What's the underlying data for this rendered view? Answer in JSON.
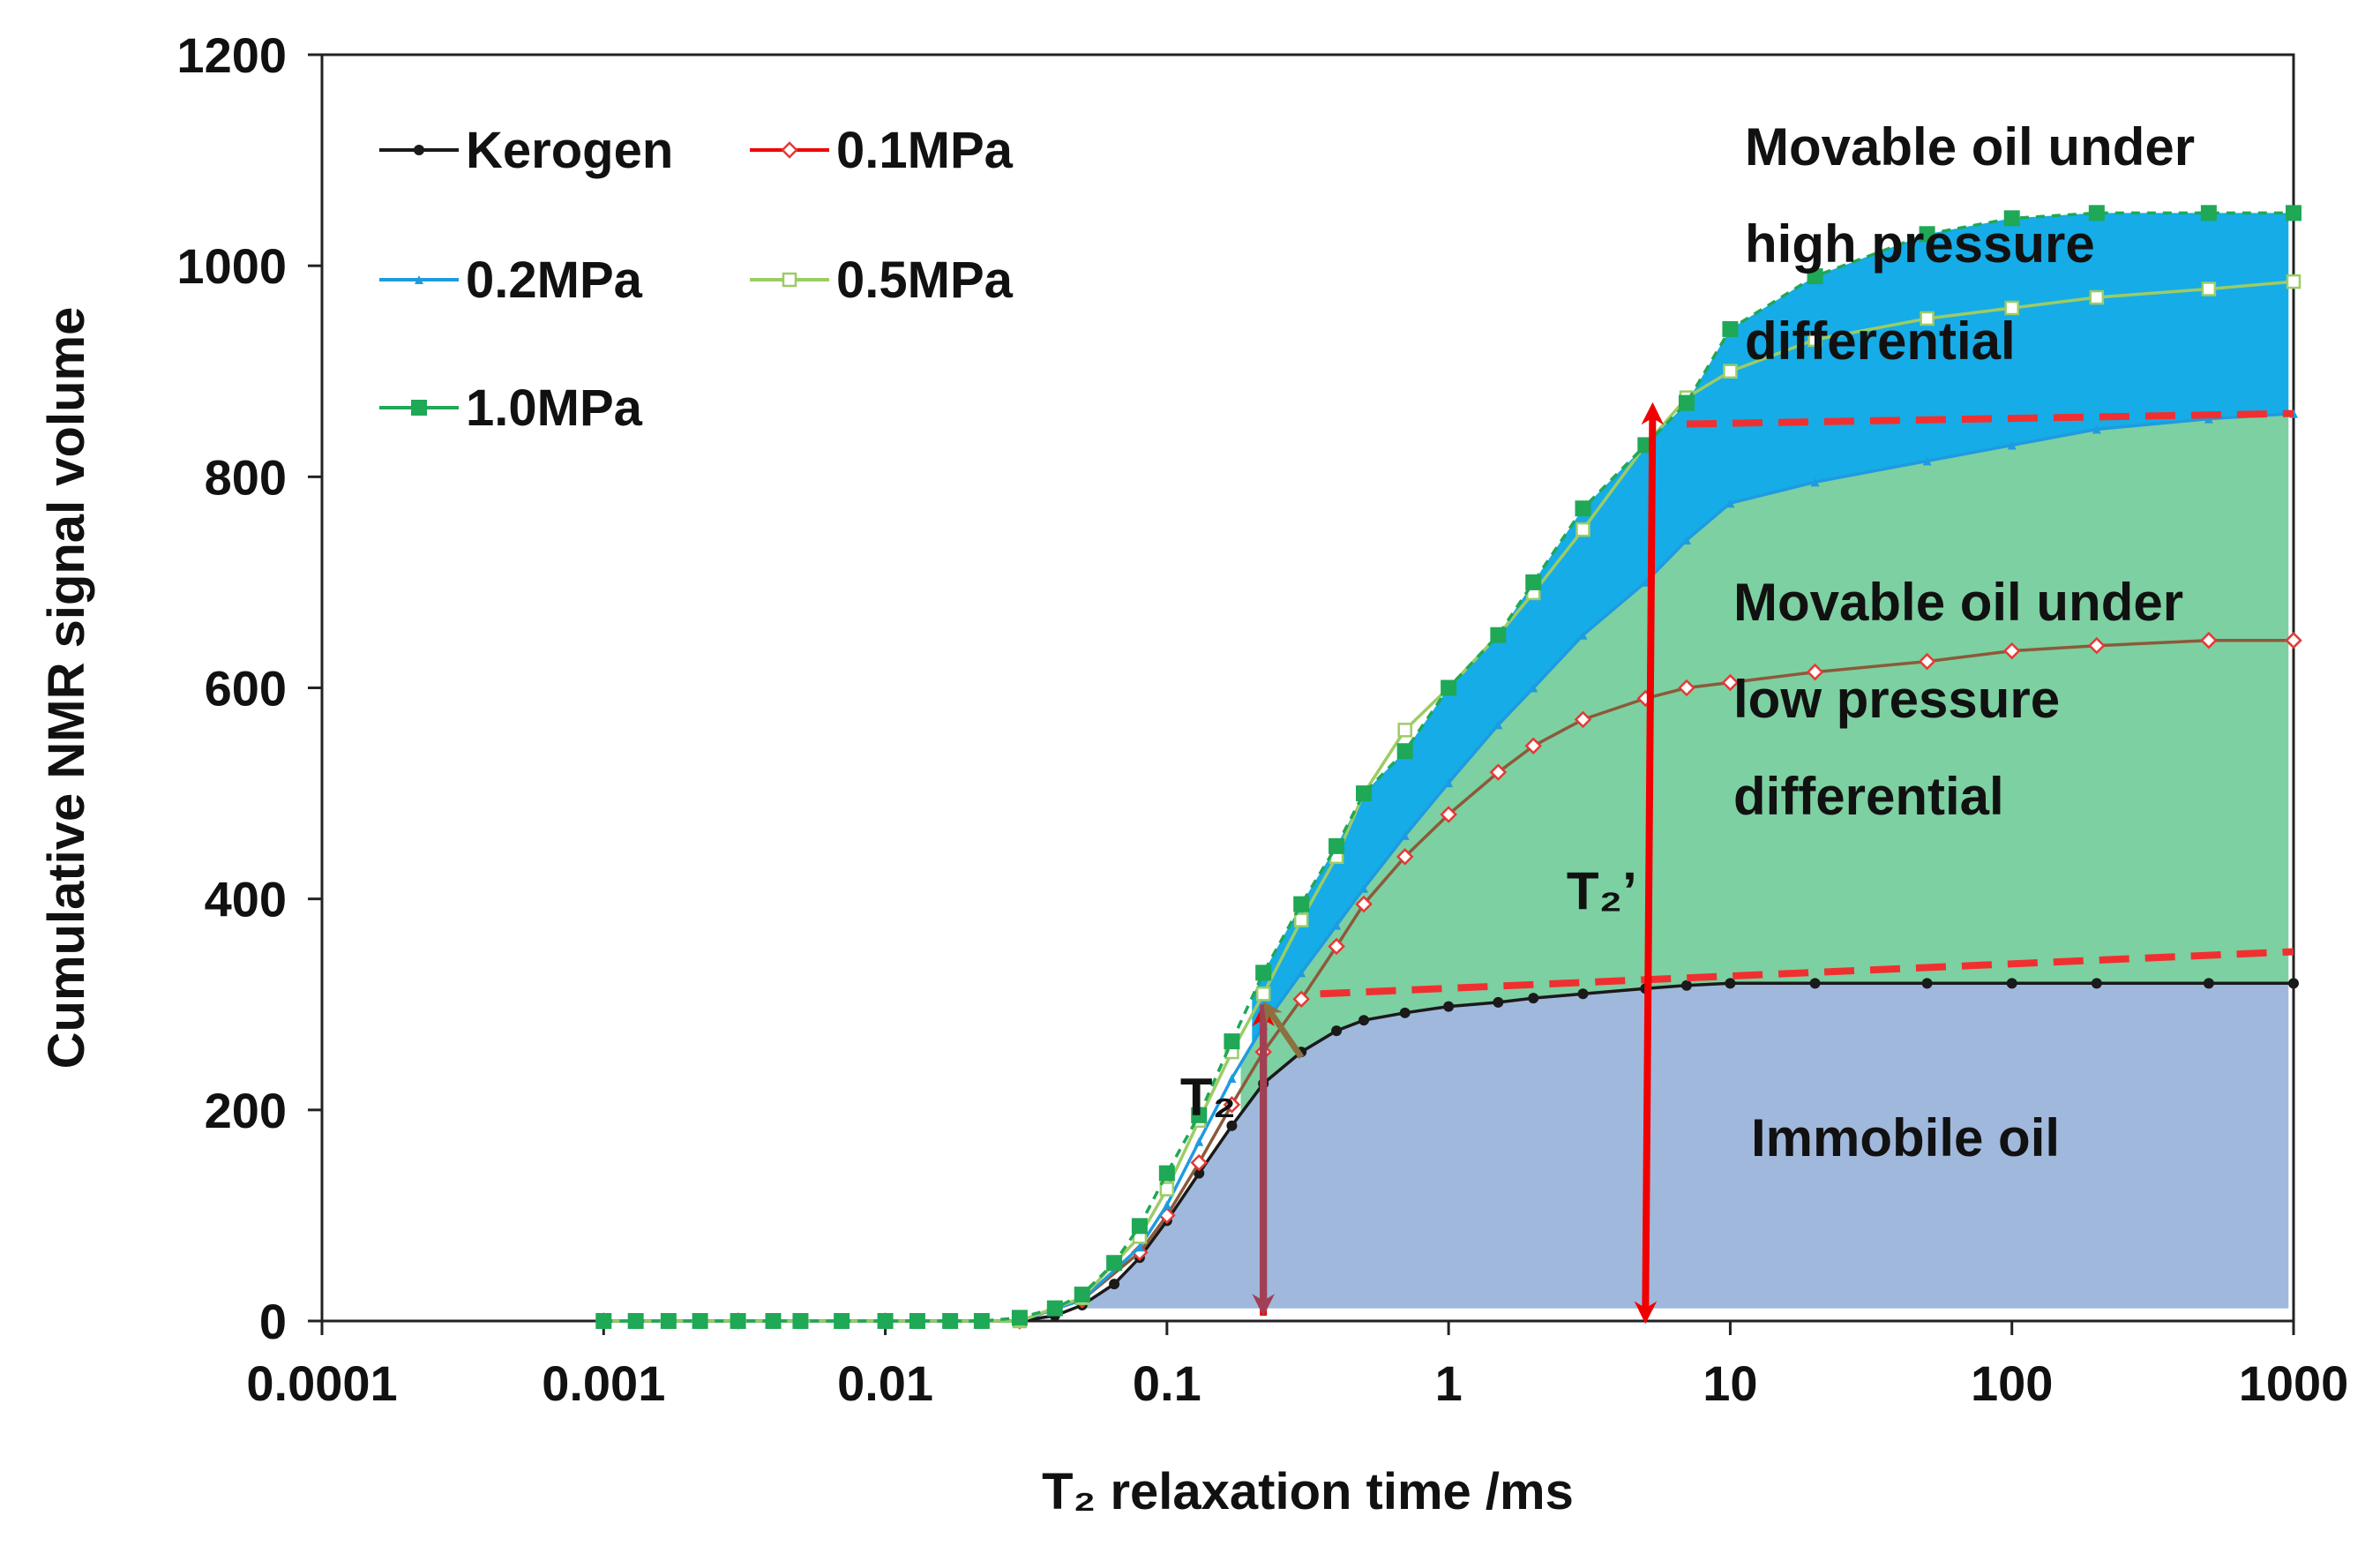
{
  "chart_data": {
    "type": "line",
    "title": "",
    "xlabel": "T₂ relaxation time /ms",
    "ylabel": "Cumulative NMR signal volume",
    "x_scale": "log",
    "xlim": [
      0.0001,
      1000
    ],
    "ylim": [
      0,
      1200
    ],
    "x_ticks": [
      "0.0001",
      "0.001",
      "0.01",
      "0.1",
      "1",
      "10",
      "100",
      "1000"
    ],
    "y_ticks": [
      "0",
      "200",
      "400",
      "600",
      "800",
      "1000",
      "1200"
    ],
    "grid": false,
    "legend": {
      "placement": "top-left"
    },
    "series": [
      {
        "name": "Kerogen",
        "color": "#1a1a1a",
        "marker": "circle",
        "x": [
          0.001,
          0.0013,
          0.0017,
          0.0022,
          0.003,
          0.004,
          0.005,
          0.007,
          0.01,
          0.013,
          0.017,
          0.022,
          0.03,
          0.04,
          0.05,
          0.065,
          0.08,
          0.1,
          0.13,
          0.17,
          0.22,
          0.3,
          0.4,
          0.5,
          0.7,
          1,
          1.5,
          2,
          3,
          5,
          7,
          10,
          20,
          50,
          100,
          200,
          500,
          1000
        ],
        "y": [
          0,
          0,
          0,
          0,
          0,
          0,
          0,
          0,
          0,
          0,
          0,
          0,
          0,
          5,
          15,
          35,
          60,
          95,
          140,
          185,
          225,
          255,
          275,
          285,
          292,
          298,
          302,
          306,
          310,
          315,
          318,
          320,
          320,
          320,
          320,
          320,
          320,
          320
        ]
      },
      {
        "name": "0.1MPa",
        "color": "#e53935",
        "marker": "diamond-open",
        "x": [
          0.001,
          0.003,
          0.01,
          0.03,
          0.05,
          0.08,
          0.1,
          0.13,
          0.17,
          0.22,
          0.3,
          0.4,
          0.5,
          0.7,
          1,
          1.5,
          2,
          3,
          5,
          7,
          10,
          20,
          50,
          100,
          200,
          500,
          1000
        ],
        "y": [
          0,
          0,
          0,
          0,
          20,
          65,
          100,
          150,
          205,
          255,
          305,
          355,
          395,
          440,
          480,
          520,
          545,
          570,
          590,
          600,
          605,
          615,
          625,
          635,
          640,
          645,
          645
        ]
      },
      {
        "name": "0.2MPa",
        "color": "#1e9be0",
        "marker": "triangle",
        "x": [
          0.001,
          0.003,
          0.01,
          0.03,
          0.05,
          0.08,
          0.1,
          0.13,
          0.17,
          0.22,
          0.3,
          0.4,
          0.5,
          0.7,
          1,
          1.5,
          2,
          3,
          5,
          7,
          10,
          20,
          50,
          100,
          200,
          500,
          1000
        ],
        "y": [
          0,
          0,
          0,
          0,
          20,
          70,
          110,
          170,
          230,
          280,
          330,
          375,
          410,
          460,
          510,
          565,
          600,
          650,
          700,
          740,
          775,
          795,
          815,
          830,
          845,
          855,
          860
        ]
      },
      {
        "name": "0.5MPa",
        "color": "#9ccc65",
        "marker": "square-open",
        "x": [
          0.001,
          0.003,
          0.01,
          0.03,
          0.05,
          0.08,
          0.1,
          0.13,
          0.17,
          0.22,
          0.3,
          0.4,
          0.5,
          0.7,
          1,
          1.5,
          2,
          3,
          5,
          7,
          10,
          20,
          50,
          100,
          200,
          500,
          1000
        ],
        "y": [
          0,
          0,
          0,
          0,
          22,
          80,
          125,
          190,
          255,
          310,
          380,
          440,
          500,
          560,
          600,
          650,
          690,
          750,
          830,
          875,
          900,
          930,
          950,
          960,
          970,
          978,
          985
        ]
      },
      {
        "name": "1.0MPa",
        "color": "#1fa855",
        "marker": "square",
        "x": [
          0.001,
          0.0013,
          0.0017,
          0.0022,
          0.003,
          0.004,
          0.005,
          0.007,
          0.01,
          0.013,
          0.017,
          0.022,
          0.03,
          0.04,
          0.05,
          0.065,
          0.08,
          0.1,
          0.13,
          0.17,
          0.22,
          0.3,
          0.4,
          0.5,
          0.7,
          1,
          1.5,
          2,
          3,
          5,
          7,
          10,
          20,
          50,
          100,
          200,
          500,
          1000
        ],
        "y": [
          0,
          0,
          0,
          0,
          0,
          0,
          0,
          0,
          0,
          0,
          0,
          0,
          3,
          12,
          25,
          55,
          90,
          140,
          195,
          265,
          330,
          395,
          450,
          500,
          540,
          600,
          650,
          700,
          770,
          830,
          870,
          940,
          990,
          1030,
          1045,
          1050,
          1050,
          1050
        ]
      }
    ],
    "shaded_regions": [
      {
        "name": "Immobile oil",
        "color": "#8fabd6"
      },
      {
        "name": "Movable oil under low pressure differential",
        "color": "#5cc48a"
      },
      {
        "name": "Movable oil under high pressure differential",
        "color": "#0aa8e6"
      }
    ],
    "annotations": {
      "high_region": [
        "Movable oil under",
        "high pressure",
        "differential"
      ],
      "low_region": [
        "Movable oil under",
        "low pressure",
        "differential"
      ],
      "immobile": "Immobile oil",
      "t2_label": "T₂",
      "t2_prime_label": "T₂’"
    },
    "reference_lines": {
      "immobile_level": 320,
      "movable_level": 860
    }
  },
  "colors": {
    "arrow_red": "#f00000",
    "arrow_brown": "#8e7040",
    "arrow_maroon": "#a04055",
    "dashed": "#f03030",
    "brown_line": "#8b5a3a"
  }
}
